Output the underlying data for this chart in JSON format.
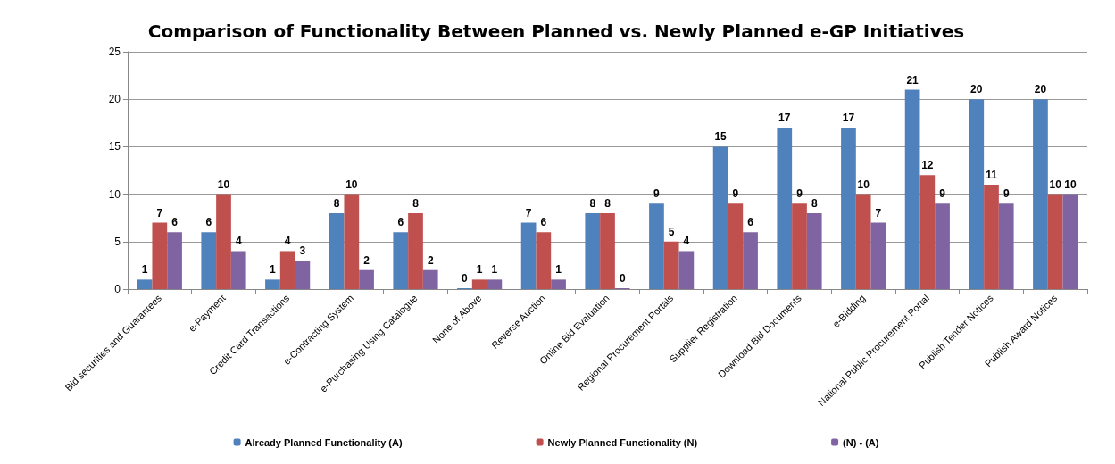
{
  "chart_data": {
    "type": "bar",
    "title": "Comparison of Functionality Between Planned vs. Newly Planned e-GP Initiatives",
    "categories": [
      "Bid securities and Guarantees",
      "e-Payment",
      "Credit Card Transactions",
      "e-Contracting System",
      "e-Purchasing Using Catalogue",
      "None of Above",
      "Reverse Auction",
      "Online Bid Evaluation",
      "Regional Procurement Portals",
      "Supplier Registration",
      "Download Bid Documents",
      "e-Bidding",
      "National Public Procurement Portal",
      "Publish Tender Notices",
      "Publish Award Notices"
    ],
    "series": [
      {
        "name": "Already Planned Functionality (A)",
        "color": "#4f81bd",
        "values": [
          1,
          6,
          1,
          8,
          6,
          0,
          7,
          8,
          9,
          15,
          17,
          17,
          21,
          20,
          20
        ]
      },
      {
        "name": "Newly Planned Functionality (N)",
        "color": "#c0504d",
        "values": [
          7,
          10,
          4,
          10,
          8,
          1,
          6,
          8,
          5,
          9,
          9,
          10,
          12,
          11,
          10
        ]
      },
      {
        "name": "(N) - (A)",
        "color": "#8064a2",
        "values": [
          6,
          4,
          3,
          2,
          2,
          1,
          1,
          0,
          4,
          6,
          8,
          7,
          9,
          9,
          10
        ]
      }
    ],
    "ylim": [
      0,
      25
    ],
    "yticks": [
      0,
      5,
      10,
      15,
      20,
      25
    ],
    "grid": "y",
    "legend": "bottom",
    "data_labels": true
  }
}
